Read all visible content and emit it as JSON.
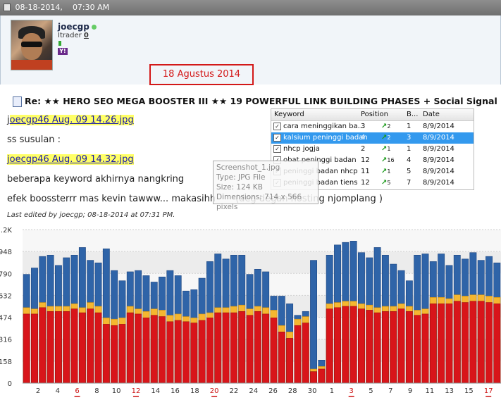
{
  "post": {
    "date": "08-18-2014,",
    "time": "07:30 AM"
  },
  "user": {
    "name": "joecgp",
    "itrader_label": "Itrader",
    "itrader_value": "0",
    "messenger_badge": "Y!"
  },
  "annotation": {
    "date_label": "18 Agustus 2014"
  },
  "thread": {
    "title": "Re: ★★ HERO SEO MEGA BOOSTER III ★★ 19 POWERFUL LINK BUILDING PHASES + Social Signal"
  },
  "message": {
    "attachment1_prefix": "j",
    "attachment1": "oecgp46 Aug. 09 14.26.jpg",
    "line1": "ss susulan :",
    "attachment2": "joecgp46 Aug. 09 14.32.jpg",
    "line2": "beberapa keyword akhirnya nangkring",
    "line3_a": "efek boossterrr mas kevin tawww... makasihh",
    "line3_b": "(deg degan hosting njomplang )",
    "edited": "Last edited by joecgp; 08-18-2014 at 07:31 PM."
  },
  "keywords": {
    "headers": [
      "Keyword",
      "Position",
      "B...",
      "Date"
    ],
    "rows": [
      {
        "keyword": "cara meninggikan ba...",
        "position": "3",
        "change": "2",
        "best": "1",
        "date": "8/9/2014"
      },
      {
        "keyword": "kalsium peninggi badan",
        "position": "4",
        "change": "2",
        "best": "3",
        "date": "8/9/2014"
      },
      {
        "keyword": "nhcp jogja",
        "position": "2",
        "change": "1",
        "best": "1",
        "date": "8/9/2014"
      },
      {
        "keyword": "obat peninggi badan",
        "position": "12",
        "change": "16",
        "best": "4",
        "date": "8/9/2014"
      },
      {
        "keyword": "peninggi badan nhcp",
        "position": "11",
        "change": "1",
        "best": "5",
        "date": "8/9/2014"
      },
      {
        "keyword": "peninggi badan tiens",
        "position": "12",
        "change": "5",
        "best": "7",
        "date": "8/9/2014"
      }
    ]
  },
  "tooltip": {
    "name": "Screenshot_1.jpg",
    "type": "Type: JPG File",
    "size": "Size: 124 KB",
    "dimensions": "Dimensions: 714 x 566 pixels"
  },
  "colors": {
    "bar_blue": "#2f64a8",
    "bar_orange": "#f5b730",
    "bar_red": "#d8151a",
    "sunday_label": "#cc1111",
    "date_box": "#d31818"
  },
  "chart_data": {
    "type": "bar",
    "y_ticks": [
      "0",
      "158",
      "316",
      "474",
      "632",
      "790",
      "948",
      ".2K"
    ],
    "ylim": [
      0,
      1200
    ],
    "x_labels": [
      "2",
      "4",
      "6",
      "8",
      "10",
      "12",
      "14",
      "16",
      "18",
      "20",
      "22",
      "24",
      "26",
      "28",
      "30",
      "1",
      "3",
      "5",
      "7",
      "9",
      "11",
      "13",
      "15",
      "17"
    ],
    "red_x_labels": [
      "6",
      "12",
      "20",
      "3",
      "10",
      "17"
    ],
    "series": [
      {
        "values": [
          850,
          900,
          990,
          1000,
          920,
          980,
          1000,
          1060,
          960,
          940,
          1050,
          880,
          800,
          870,
          880,
          840,
          790,
          830,
          880,
          840,
          720,
          730,
          820,
          950,
          1010,
          970,
          1000,
          1000,
          850,
          890,
          870,
          680,
          680,
          620,
          530,
          560,
          960,
          180,
          1000,
          1080,
          1100,
          1110,
          1020,
          980,
          1060,
          1000,
          930,
          880,
          800,
          1000,
          1010,
          950,
          1010,
          920,
          1000,
          970,
          1020,
          960,
          990,
          940
        ]
      },
      {
        "values": [
          590,
          580,
          630,
          600,
          600,
          600,
          620,
          590,
          630,
          600,
          510,
          500,
          510,
          600,
          580,
          560,
          580,
          570,
          530,
          540,
          520,
          510,
          540,
          550,
          590,
          590,
          600,
          610,
          580,
          600,
          590,
          570,
          450,
          400,
          500,
          520,
          110,
          130,
          620,
          630,
          640,
          640,
          620,
          610,
          590,
          600,
          600,
          620,
          600,
          570,
          580,
          670,
          670,
          660,
          690,
          680,
          690,
          690,
          680,
          670
        ]
      },
      {
        "values": [
          540,
          540,
          590,
          560,
          560,
          560,
          580,
          550,
          580,
          550,
          460,
          450,
          460,
          550,
          540,
          510,
          530,
          520,
          480,
          490,
          480,
          470,
          490,
          510,
          550,
          550,
          550,
          560,
          530,
          560,
          540,
          510,
          400,
          350,
          450,
          470,
          90,
          110,
          580,
          590,
          600,
          600,
          580,
          570,
          550,
          560,
          560,
          580,
          560,
          530,
          540,
          620,
          620,
          620,
          640,
          630,
          640,
          640,
          630,
          620
        ]
      }
    ]
  }
}
